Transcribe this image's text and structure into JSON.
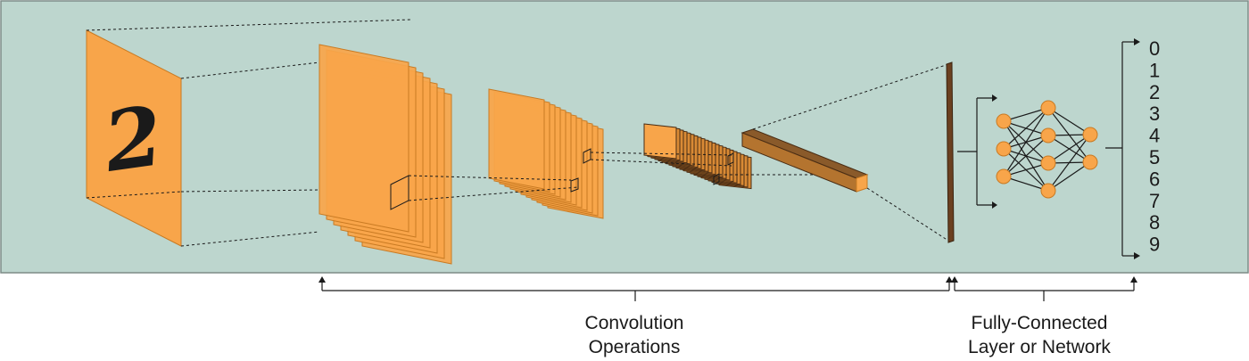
{
  "input": {
    "digit": "2"
  },
  "output_classes": [
    "0",
    "1",
    "2",
    "3",
    "4",
    "5",
    "6",
    "7",
    "8",
    "9"
  ],
  "brackets": {
    "conv": [
      "Convolution",
      "Operations"
    ],
    "fc": [
      "Fully-Connected",
      "Layer or Network"
    ]
  },
  "colors": {
    "panel_bg": "#bdd6ce",
    "panel_border": "#7d8c87",
    "feature_fill": "#f8a54a",
    "feature_edge": "#c97a22",
    "dark_edge": "#4a2d14",
    "line": "#1a1a1a",
    "node_fill": "#f8a54a"
  }
}
